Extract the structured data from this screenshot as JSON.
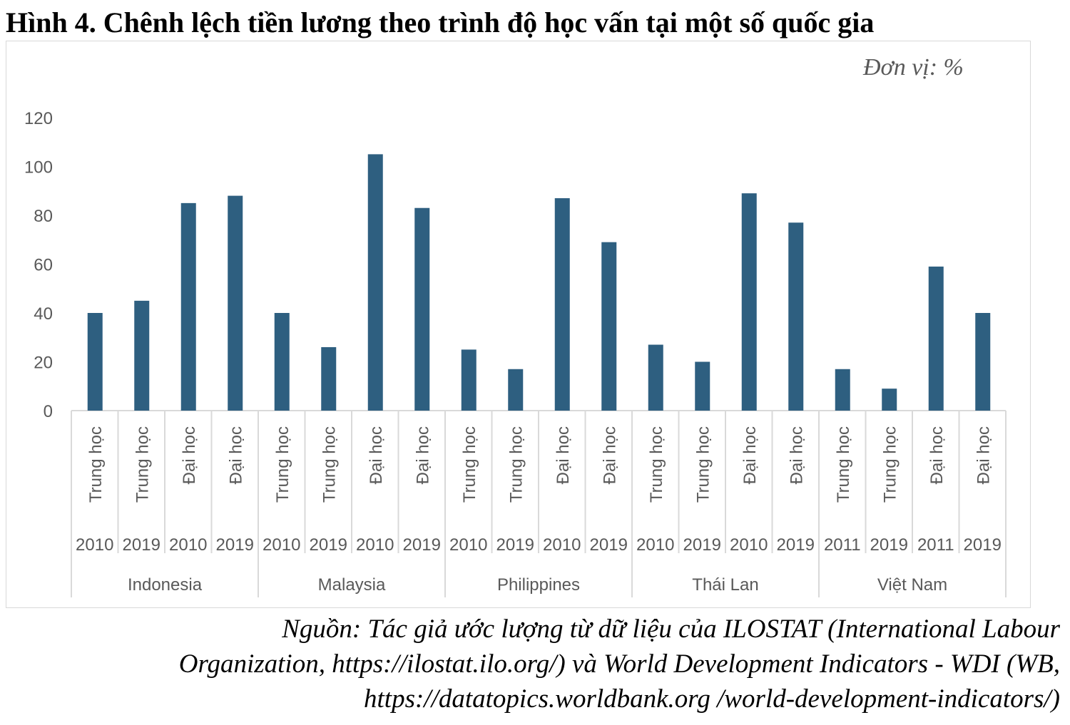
{
  "chart_data": {
    "type": "bar",
    "title": "Hình 4. Chênh lệch tiền lương theo trình độ học vấn tại một số quốc gia",
    "unit_label": "Đơn vị: %",
    "ylim": [
      0,
      120
    ],
    "yticks": [
      0,
      20,
      40,
      60,
      80,
      100,
      120
    ],
    "bar_color": "#2e5f80",
    "groups": [
      {
        "country": "Indonesia",
        "items": [
          {
            "level": "Trung học",
            "year": "2010",
            "value": 40
          },
          {
            "level": "Trung học",
            "year": "2019",
            "value": 45
          },
          {
            "level": "Đại học",
            "year": "2010",
            "value": 85
          },
          {
            "level": "Đại học",
            "year": "2019",
            "value": 88
          }
        ]
      },
      {
        "country": "Malaysia",
        "items": [
          {
            "level": "Trung học",
            "year": "2010",
            "value": 40
          },
          {
            "level": "Trung học",
            "year": "2019",
            "value": 26
          },
          {
            "level": "Đại học",
            "year": "2010",
            "value": 105
          },
          {
            "level": "Đại học",
            "year": "2019",
            "value": 83
          }
        ]
      },
      {
        "country": "Philippines",
        "items": [
          {
            "level": "Trung học",
            "year": "2010",
            "value": 25
          },
          {
            "level": "Trung học",
            "year": "2019",
            "value": 17
          },
          {
            "level": "Đại học",
            "year": "2010",
            "value": 87
          },
          {
            "level": "Đại học",
            "year": "2019",
            "value": 69
          }
        ]
      },
      {
        "country": "Thái Lan",
        "items": [
          {
            "level": "Trung học",
            "year": "2010",
            "value": 27
          },
          {
            "level": "Trung học",
            "year": "2019",
            "value": 20
          },
          {
            "level": "Đại học",
            "year": "2010",
            "value": 89
          },
          {
            "level": "Đại học",
            "year": "2019",
            "value": 77
          }
        ]
      },
      {
        "country": "Việt Nam",
        "items": [
          {
            "level": "Trung học",
            "year": "2011",
            "value": 17
          },
          {
            "level": "Trung học",
            "year": "2019",
            "value": 9
          },
          {
            "level": "Đại học",
            "year": "2011",
            "value": 59
          },
          {
            "level": "Đại học",
            "year": "2019",
            "value": 40
          }
        ]
      }
    ]
  },
  "source": {
    "line1": "Nguồn: Tác giả ước lượng từ dữ liệu của ILOSTAT (International Labour",
    "line2": "Organization,  https://ilostat.ilo.org/) và World Development Indicators - WDI (WB,",
    "line3": "https://datatopics.worldbank.org /world-development-indicators/)"
  }
}
